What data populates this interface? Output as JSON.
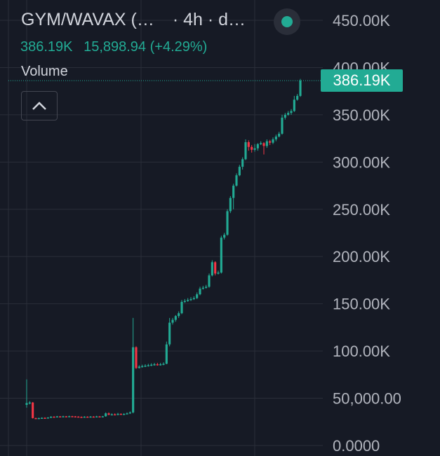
{
  "header": {
    "pair": "GYM/WAVAX (…",
    "meta": "· 4h · d…",
    "last_value": "386.19K",
    "change": "15,898.94 (+4.29%)",
    "volume_label": "Volume"
  },
  "price_tag": "386.19K",
  "colors": {
    "up": "#22ab94",
    "down": "#f23645",
    "grid": "#2a2e39",
    "axis_text": "#b2b5be",
    "background": "#161a25"
  },
  "icons": {
    "status": "status-dot-icon",
    "collapse": "chevron-up-icon"
  },
  "chart_data": {
    "type": "candlestick",
    "title": "GYM/WAVAX (…",
    "interval": "4h",
    "ylim": [
      0,
      450000
    ],
    "y_ticks": [
      0,
      50000,
      100000,
      150000,
      200000,
      250000,
      300000,
      350000,
      400000,
      450000
    ],
    "y_tick_labels": [
      "0.0000",
      "50,000.00",
      "100.00K",
      "150.00K",
      "200.00K",
      "250.00K",
      "300.00K",
      "350.00K",
      "400.00K",
      "450.00K"
    ],
    "last_value": 386190,
    "grid": true,
    "candles": [
      [
        43000,
        45000,
        70000,
        40000
      ],
      [
        45000,
        45500,
        47000,
        43500
      ],
      [
        45500,
        29000,
        46000,
        28500
      ],
      [
        29000,
        28800,
        29500,
        28200
      ],
      [
        28800,
        29000,
        29500,
        28300
      ],
      [
        29000,
        29300,
        29800,
        28600
      ],
      [
        29300,
        29100,
        29800,
        28600
      ],
      [
        29100,
        29600,
        30000,
        28800
      ],
      [
        29600,
        30500,
        31000,
        29000
      ],
      [
        30500,
        30300,
        31000,
        29800
      ],
      [
        30300,
        30800,
        31300,
        29800
      ],
      [
        30800,
        30600,
        31200,
        30000
      ],
      [
        30600,
        30900,
        31400,
        30100
      ],
      [
        30900,
        30700,
        31200,
        30200
      ],
      [
        30700,
        31000,
        31500,
        30200
      ],
      [
        31000,
        30800,
        31300,
        30200
      ],
      [
        30800,
        30600,
        31200,
        30000
      ],
      [
        30600,
        30300,
        31000,
        29800
      ],
      [
        30300,
        30100,
        30800,
        29600
      ],
      [
        30100,
        30500,
        31000,
        29600
      ],
      [
        30500,
        30200,
        30900,
        29700
      ],
      [
        30200,
        30600,
        31100,
        29700
      ],
      [
        30600,
        30400,
        31100,
        29900
      ],
      [
        30400,
        30800,
        31400,
        29900
      ],
      [
        30800,
        30500,
        31200,
        29800
      ],
      [
        30500,
        30900,
        31300,
        29900
      ],
      [
        30900,
        34000,
        35000,
        30500
      ],
      [
        34000,
        32500,
        35000,
        32000
      ],
      [
        32500,
        33000,
        34000,
        32000
      ],
      [
        33000,
        32500,
        34000,
        32000
      ],
      [
        32500,
        33500,
        34500,
        32000
      ],
      [
        33500,
        32800,
        34000,
        32300
      ],
      [
        32800,
        33400,
        34200,
        32300
      ],
      [
        33400,
        34000,
        35000,
        33000
      ],
      [
        34000,
        35000,
        36000,
        33500
      ],
      [
        35000,
        104000,
        135000,
        34000
      ],
      [
        104000,
        82000,
        105000,
        81000
      ],
      [
        82000,
        83500,
        85000,
        81500
      ],
      [
        83500,
        84000,
        85500,
        82500
      ],
      [
        84000,
        84500,
        86000,
        83000
      ],
      [
        84500,
        85000,
        86500,
        83500
      ],
      [
        85000,
        85500,
        87000,
        84000
      ],
      [
        85500,
        86000,
        87500,
        84500
      ],
      [
        86000,
        85500,
        87500,
        84500
      ],
      [
        85500,
        86000,
        87500,
        84500
      ],
      [
        86000,
        86500,
        88000,
        85000
      ],
      [
        86500,
        107000,
        110000,
        86000
      ],
      [
        107000,
        130000,
        135000,
        105000
      ],
      [
        130000,
        133000,
        135000,
        128000
      ],
      [
        133000,
        137000,
        138000,
        131000
      ],
      [
        137000,
        140000,
        142000,
        135000
      ],
      [
        140000,
        152000,
        154000,
        139000
      ],
      [
        152000,
        153000,
        155000,
        151000
      ],
      [
        153000,
        154000,
        156000,
        152000
      ],
      [
        154000,
        155000,
        157000,
        153000
      ],
      [
        155000,
        156000,
        158000,
        154000
      ],
      [
        156000,
        160000,
        162000,
        155000
      ],
      [
        160000,
        166000,
        168000,
        159000
      ],
      [
        166000,
        167000,
        169000,
        165000
      ],
      [
        167000,
        168000,
        170000,
        166000
      ],
      [
        168000,
        180000,
        182000,
        167000
      ],
      [
        180000,
        194000,
        196000,
        179000
      ],
      [
        194000,
        182000,
        195000,
        180000
      ],
      [
        182000,
        183000,
        185000,
        181000
      ],
      [
        183000,
        220000,
        222000,
        182000
      ],
      [
        220000,
        223000,
        225000,
        218000
      ],
      [
        223000,
        248000,
        250000,
        222000
      ],
      [
        248000,
        262000,
        264000,
        246000
      ],
      [
        262000,
        275000,
        277000,
        250000
      ],
      [
        275000,
        286000,
        288000,
        274000
      ],
      [
        286000,
        295000,
        297000,
        285000
      ],
      [
        295000,
        303000,
        305000,
        292000
      ],
      [
        303000,
        321000,
        324000,
        302000
      ],
      [
        321000,
        316000,
        323000,
        312000
      ],
      [
        316000,
        313000,
        318000,
        310000
      ],
      [
        313000,
        314500,
        319000,
        311000
      ],
      [
        314500,
        319000,
        320000,
        312000
      ],
      [
        319000,
        320000,
        322000,
        318000
      ],
      [
        320000,
        317000,
        321000,
        308000
      ],
      [
        317000,
        322000,
        324000,
        315000
      ],
      [
        322000,
        320500,
        323500,
        318000
      ],
      [
        320500,
        324000,
        326000,
        319000
      ],
      [
        324000,
        327000,
        329000,
        322000
      ],
      [
        327000,
        330000,
        332000,
        326000
      ],
      [
        330000,
        347000,
        350000,
        329000
      ],
      [
        347000,
        350000,
        352000,
        345000
      ],
      [
        350000,
        352000,
        354000,
        349000
      ],
      [
        352000,
        354000,
        356000,
        350000
      ],
      [
        354000,
        366000,
        370000,
        353000
      ],
      [
        366000,
        370000,
        372000,
        365000
      ],
      [
        370000,
        386190,
        388000,
        369000
      ]
    ]
  }
}
